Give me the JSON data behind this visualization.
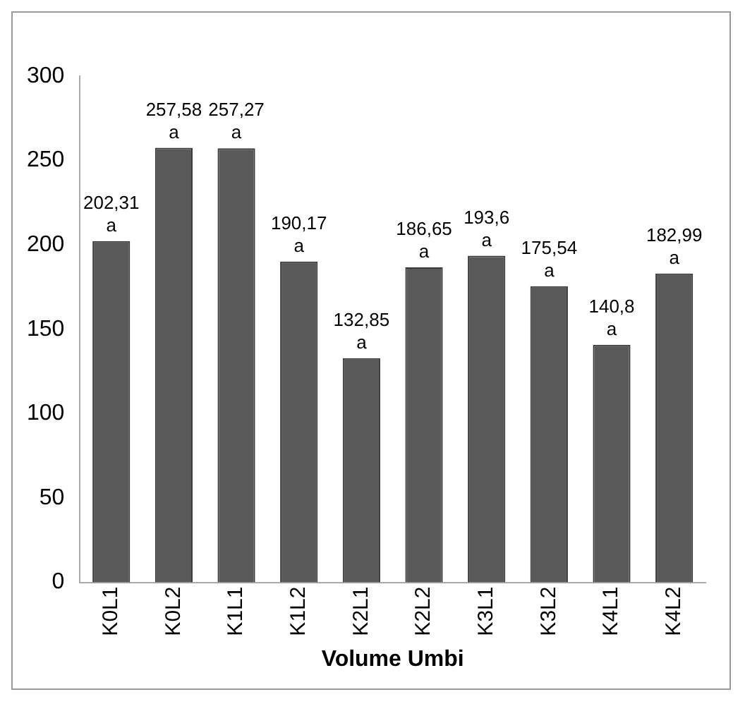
{
  "chart_data": {
    "type": "bar",
    "xlabel": "Volume Umbi",
    "categories": [
      "K0L1",
      "K0L2",
      "K1L1",
      "K1L2",
      "K2L1",
      "K2L2",
      "K3L1",
      "K3L2",
      "K4L1",
      "K4L2"
    ],
    "values": [
      202.31,
      257.58,
      257.27,
      190.17,
      132.85,
      186.65,
      193.6,
      175.54,
      140.8,
      182.99
    ],
    "value_labels": [
      "202,31",
      "257,58",
      "257,27",
      "190,17",
      "132,85",
      "186,65",
      "193,6",
      "175,54",
      "140,8",
      "182,99"
    ],
    "color": "#595959",
    "ylim": [
      0,
      300
    ],
    "yticks": [
      0,
      50,
      100,
      150,
      200,
      250,
      300
    ],
    "grid": false,
    "legend": false,
    "annotations": [
      {
        "text": "a",
        "x": "K0L1",
        "y": 202.31
      },
      {
        "text": "a",
        "x": "K0L2",
        "y": 257.58
      },
      {
        "text": "a",
        "x": "K1L1",
        "y": 257.27
      },
      {
        "text": "a",
        "x": "K1L2",
        "y": 190.17
      },
      {
        "text": "a",
        "x": "K2L1",
        "y": 132.85
      },
      {
        "text": "a",
        "x": "K2L2",
        "y": 186.65
      },
      {
        "text": "a",
        "x": "K3L1",
        "y": 193.6
      },
      {
        "text": "a",
        "x": "K3L2",
        "y": 175.54
      },
      {
        "text": "a",
        "x": "K4L1",
        "y": 140.8
      },
      {
        "text": "a",
        "x": "K4L2",
        "y": 182.99
      }
    ]
  }
}
